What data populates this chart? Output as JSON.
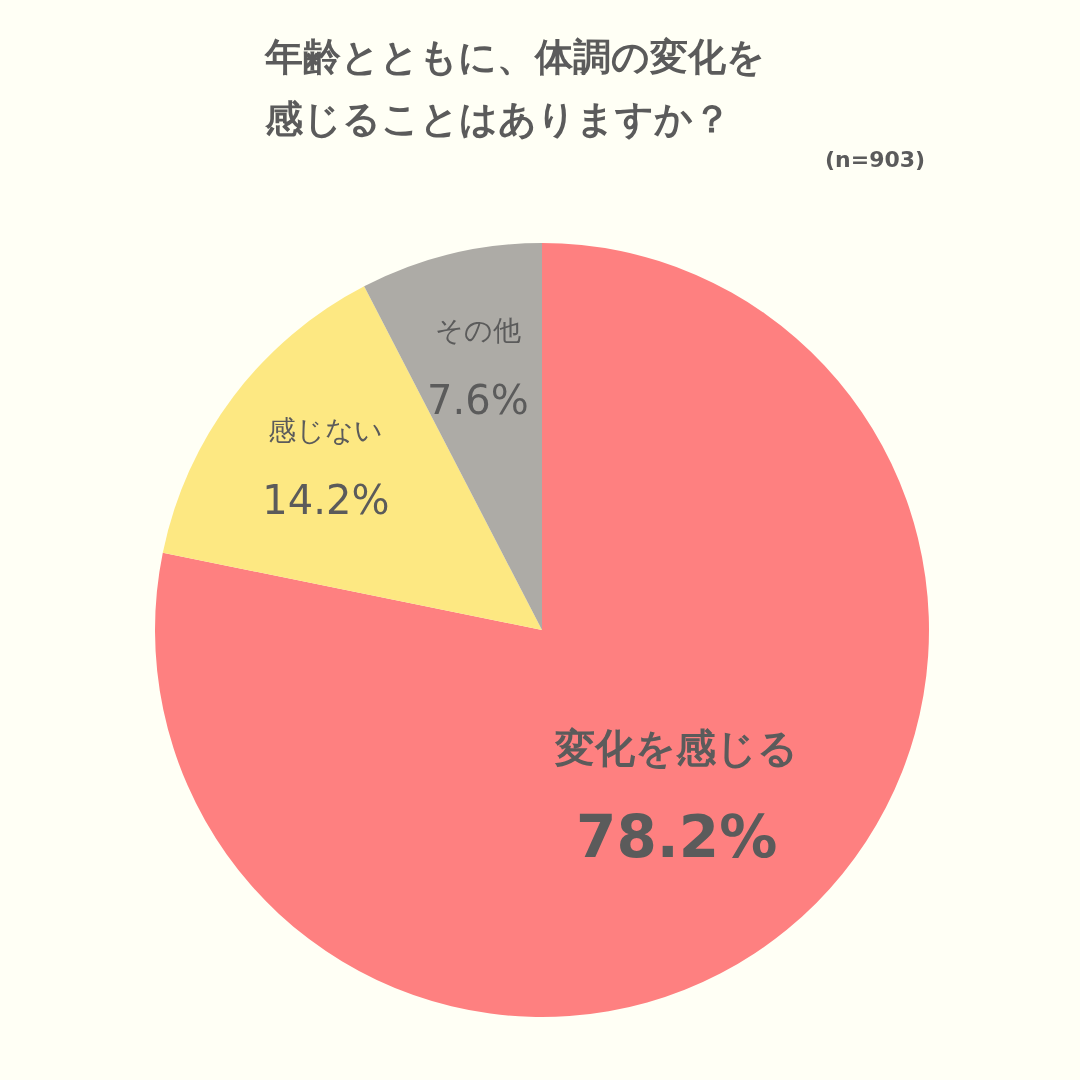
{
  "chart_data": {
    "type": "pie",
    "title": "年齢とともに、体調の変化を感じることはありますか？",
    "annotations": [
      "(n=903)"
    ],
    "categories": [
      "変化を感じる",
      "感じない",
      "その他"
    ],
    "values": [
      78.2,
      14.2,
      7.6
    ],
    "value_labels": [
      "78.2%",
      "14.2%",
      "7.6%"
    ],
    "colors": [
      "#fe8080",
      "#fde882",
      "#adaba6"
    ],
    "legend": false
  }
}
